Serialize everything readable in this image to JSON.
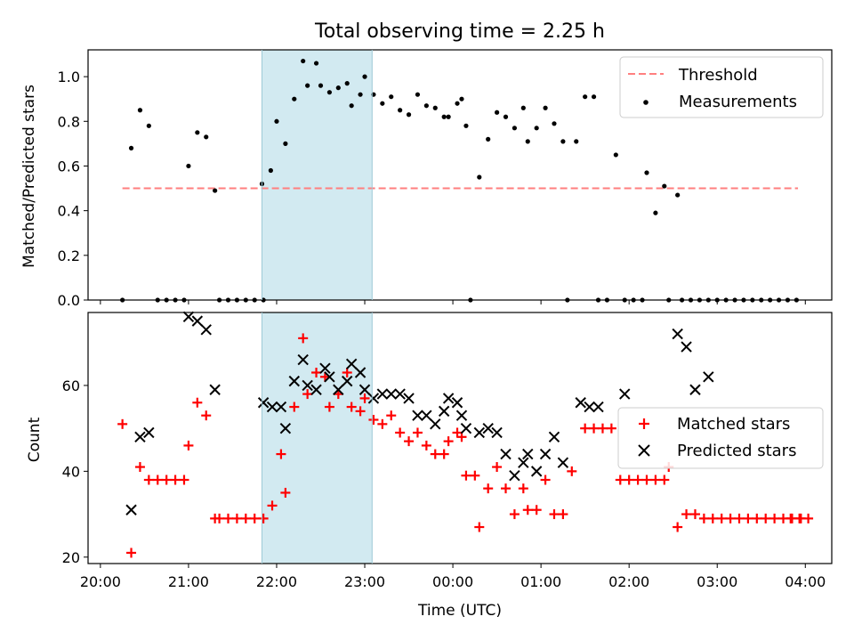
{
  "chart_data": [
    {
      "type": "scatter",
      "title": "Total observing time = 2.25 h",
      "ylabel": "Matched/Predicted stars",
      "xlabel": "",
      "ylim": [
        0,
        1.12
      ],
      "yticks": [
        "0.0",
        "0.2",
        "0.4",
        "0.6",
        "0.8",
        "1.0"
      ],
      "xticks": [
        "20:00",
        "21:00",
        "22:00",
        "23:00",
        "00:00",
        "01:00",
        "02:00",
        "03:00",
        "04:00"
      ],
      "grid": false,
      "legend_position": "top-right",
      "highlight_interval": [
        "21:50",
        "23:05"
      ],
      "colors": {
        "threshold": "#ff7f7f",
        "measurements": "#000000",
        "highlight": "#add8e6"
      },
      "threshold": {
        "name": "Threshold",
        "y": 0.5,
        "x_range": [
          "20:15",
          "03:55"
        ]
      },
      "series": [
        {
          "name": "Measurements",
          "points": [
            [
              "20:15",
              0.0
            ],
            [
              "20:21",
              0.68
            ],
            [
              "20:27",
              0.85
            ],
            [
              "20:33",
              0.78
            ],
            [
              "20:39",
              0.0
            ],
            [
              "20:45",
              0.0
            ],
            [
              "20:51",
              0.0
            ],
            [
              "20:57",
              0.0
            ],
            [
              "21:00",
              0.6
            ],
            [
              "21:06",
              0.75
            ],
            [
              "21:12",
              0.73
            ],
            [
              "21:18",
              0.49
            ],
            [
              "21:21",
              0.0
            ],
            [
              "21:27",
              0.0
            ],
            [
              "21:33",
              0.0
            ],
            [
              "21:39",
              0.0
            ],
            [
              "21:45",
              0.0
            ],
            [
              "21:51",
              0.0
            ],
            [
              "21:50",
              0.52
            ],
            [
              "21:56",
              0.58
            ],
            [
              "22:00",
              0.8
            ],
            [
              "22:06",
              0.7
            ],
            [
              "22:12",
              0.9
            ],
            [
              "22:18",
              1.07
            ],
            [
              "22:21",
              0.96
            ],
            [
              "22:27",
              1.06
            ],
            [
              "22:30",
              0.96
            ],
            [
              "22:36",
              0.93
            ],
            [
              "22:42",
              0.95
            ],
            [
              "22:48",
              0.97
            ],
            [
              "22:51",
              0.87
            ],
            [
              "22:57",
              0.92
            ],
            [
              "23:00",
              1.0
            ],
            [
              "23:06",
              0.92
            ],
            [
              "23:12",
              0.88
            ],
            [
              "23:18",
              0.91
            ],
            [
              "23:24",
              0.85
            ],
            [
              "23:30",
              0.83
            ],
            [
              "23:36",
              0.92
            ],
            [
              "23:42",
              0.87
            ],
            [
              "23:48",
              0.86
            ],
            [
              "23:54",
              0.82
            ],
            [
              "23:57",
              0.82
            ],
            [
              "00:03",
              0.88
            ],
            [
              "00:06",
              0.9
            ],
            [
              "00:09",
              0.78
            ],
            [
              "00:12",
              0.0
            ],
            [
              "00:18",
              0.55
            ],
            [
              "00:24",
              0.72
            ],
            [
              "00:30",
              0.84
            ],
            [
              "00:36",
              0.82
            ],
            [
              "00:42",
              0.77
            ],
            [
              "00:48",
              0.86
            ],
            [
              "00:51",
              0.71
            ],
            [
              "00:57",
              0.77
            ],
            [
              "01:03",
              0.86
            ],
            [
              "01:09",
              0.79
            ],
            [
              "01:15",
              0.71
            ],
            [
              "01:18",
              0.0
            ],
            [
              "01:24",
              0.71
            ],
            [
              "01:30",
              0.91
            ],
            [
              "01:36",
              0.91
            ],
            [
              "01:39",
              0.0
            ],
            [
              "01:45",
              0.0
            ],
            [
              "01:51",
              0.65
            ],
            [
              "01:57",
              0.0
            ],
            [
              "02:03",
              0.0
            ],
            [
              "02:09",
              0.0
            ],
            [
              "02:12",
              0.57
            ],
            [
              "02:18",
              0.39
            ],
            [
              "02:24",
              0.51
            ],
            [
              "02:27",
              0.0
            ],
            [
              "02:33",
              0.47
            ],
            [
              "02:36",
              0.0
            ],
            [
              "02:42",
              0.0
            ],
            [
              "02:48",
              0.0
            ],
            [
              "02:54",
              0.0
            ],
            [
              "03:00",
              0.0
            ],
            [
              "03:06",
              0.0
            ],
            [
              "03:12",
              0.0
            ],
            [
              "03:18",
              0.0
            ],
            [
              "03:24",
              0.0
            ],
            [
              "03:30",
              0.0
            ],
            [
              "03:36",
              0.0
            ],
            [
              "03:42",
              0.0
            ],
            [
              "03:48",
              0.0
            ],
            [
              "03:54",
              0.0
            ]
          ]
        }
      ]
    },
    {
      "type": "scatter",
      "title": "",
      "xlabel": "Time (UTC)",
      "ylabel": "Count",
      "ylim": [
        18.5,
        77
      ],
      "yticks": [
        "20",
        "40",
        "60"
      ],
      "xticks": [
        "20:00",
        "21:00",
        "22:00",
        "23:00",
        "00:00",
        "01:00",
        "02:00",
        "03:00",
        "04:00"
      ],
      "grid": false,
      "legend_position": "center-right",
      "highlight_interval": [
        "21:50",
        "23:05"
      ],
      "colors": {
        "matched": "#ff0000",
        "predicted": "#000000",
        "highlight": "#add8e6"
      },
      "series": [
        {
          "name": "Matched stars",
          "marker": "+",
          "points": [
            [
              "20:15",
              51
            ],
            [
              "20:21",
              21
            ],
            [
              "20:27",
              41
            ],
            [
              "20:33",
              38
            ],
            [
              "20:39",
              38
            ],
            [
              "20:45",
              38
            ],
            [
              "20:51",
              38
            ],
            [
              "20:57",
              38
            ],
            [
              "21:00",
              46
            ],
            [
              "21:06",
              56
            ],
            [
              "21:12",
              53
            ],
            [
              "21:18",
              29
            ],
            [
              "21:21",
              29
            ],
            [
              "21:27",
              29
            ],
            [
              "21:33",
              29
            ],
            [
              "21:39",
              29
            ],
            [
              "21:45",
              29
            ],
            [
              "21:51",
              29
            ],
            [
              "21:57",
              32
            ],
            [
              "22:03",
              44
            ],
            [
              "22:06",
              35
            ],
            [
              "22:12",
              55
            ],
            [
              "22:18",
              71
            ],
            [
              "22:21",
              58
            ],
            [
              "22:27",
              63
            ],
            [
              "22:33",
              62
            ],
            [
              "22:36",
              55
            ],
            [
              "22:42",
              58
            ],
            [
              "22:48",
              63
            ],
            [
              "22:51",
              55
            ],
            [
              "22:57",
              54
            ],
            [
              "23:00",
              57
            ],
            [
              "23:06",
              52
            ],
            [
              "23:12",
              51
            ],
            [
              "23:18",
              53
            ],
            [
              "23:24",
              49
            ],
            [
              "23:30",
              47
            ],
            [
              "23:36",
              49
            ],
            [
              "23:42",
              46
            ],
            [
              "23:48",
              44
            ],
            [
              "23:54",
              44
            ],
            [
              "23:57",
              47
            ],
            [
              "00:03",
              49
            ],
            [
              "00:06",
              48
            ],
            [
              "00:09",
              39
            ],
            [
              "00:15",
              39
            ],
            [
              "00:18",
              27
            ],
            [
              "00:24",
              36
            ],
            [
              "00:30",
              41
            ],
            [
              "00:36",
              36
            ],
            [
              "00:42",
              30
            ],
            [
              "00:48",
              36
            ],
            [
              "00:51",
              31
            ],
            [
              "00:57",
              31
            ],
            [
              "01:03",
              38
            ],
            [
              "01:09",
              30
            ],
            [
              "01:15",
              30
            ],
            [
              "01:21",
              40
            ],
            [
              "01:30",
              50
            ],
            [
              "01:36",
              50
            ],
            [
              "01:42",
              50
            ],
            [
              "01:48",
              50
            ],
            [
              "01:54",
              38
            ],
            [
              "02:00",
              38
            ],
            [
              "02:06",
              38
            ],
            [
              "02:12",
              38
            ],
            [
              "02:18",
              38
            ],
            [
              "02:24",
              38
            ],
            [
              "02:27",
              41
            ],
            [
              "02:33",
              27
            ],
            [
              "02:39",
              30
            ],
            [
              "02:45",
              30
            ],
            [
              "02:51",
              29
            ],
            [
              "02:57",
              29
            ],
            [
              "03:03",
              29
            ],
            [
              "03:09",
              29
            ],
            [
              "03:15",
              29
            ],
            [
              "03:21",
              29
            ],
            [
              "03:27",
              29
            ],
            [
              "03:33",
              29
            ],
            [
              "03:39",
              29
            ],
            [
              "03:45",
              29
            ],
            [
              "03:51",
              29
            ],
            [
              "03:57",
              29
            ],
            [
              "03:50",
              29
            ],
            [
              "03:56",
              29
            ],
            [
              "04:02",
              29
            ]
          ]
        },
        {
          "name": "Predicted stars",
          "marker": "x",
          "points": [
            [
              "20:21",
              31
            ],
            [
              "20:27",
              48
            ],
            [
              "20:33",
              49
            ],
            [
              "21:00",
              76
            ],
            [
              "21:06",
              75
            ],
            [
              "21:12",
              73
            ],
            [
              "21:18",
              59
            ],
            [
              "21:51",
              56
            ],
            [
              "21:57",
              55
            ],
            [
              "22:03",
              55
            ],
            [
              "22:06",
              50
            ],
            [
              "22:12",
              61
            ],
            [
              "22:18",
              66
            ],
            [
              "22:21",
              60
            ],
            [
              "22:27",
              59
            ],
            [
              "22:33",
              64
            ],
            [
              "22:36",
              62
            ],
            [
              "22:42",
              59
            ],
            [
              "22:48",
              61
            ],
            [
              "22:51",
              65
            ],
            [
              "22:57",
              63
            ],
            [
              "23:00",
              59
            ],
            [
              "23:06",
              57
            ],
            [
              "23:12",
              58
            ],
            [
              "23:18",
              58
            ],
            [
              "23:24",
              58
            ],
            [
              "23:30",
              57
            ],
            [
              "23:36",
              53
            ],
            [
              "23:42",
              53
            ],
            [
              "23:48",
              51
            ],
            [
              "23:54",
              54
            ],
            [
              "23:57",
              57
            ],
            [
              "00:03",
              56
            ],
            [
              "00:06",
              53
            ],
            [
              "00:09",
              50
            ],
            [
              "00:18",
              49
            ],
            [
              "00:24",
              50
            ],
            [
              "00:30",
              49
            ],
            [
              "00:36",
              44
            ],
            [
              "00:42",
              39
            ],
            [
              "00:48",
              42
            ],
            [
              "00:51",
              44
            ],
            [
              "00:57",
              40
            ],
            [
              "01:03",
              44
            ],
            [
              "01:09",
              48
            ],
            [
              "01:15",
              42
            ],
            [
              "01:27",
              56
            ],
            [
              "01:33",
              55
            ],
            [
              "01:39",
              55
            ],
            [
              "01:57",
              58
            ],
            [
              "02:33",
              72
            ],
            [
              "02:39",
              69
            ],
            [
              "02:45",
              59
            ],
            [
              "02:54",
              62
            ]
          ]
        }
      ]
    }
  ]
}
